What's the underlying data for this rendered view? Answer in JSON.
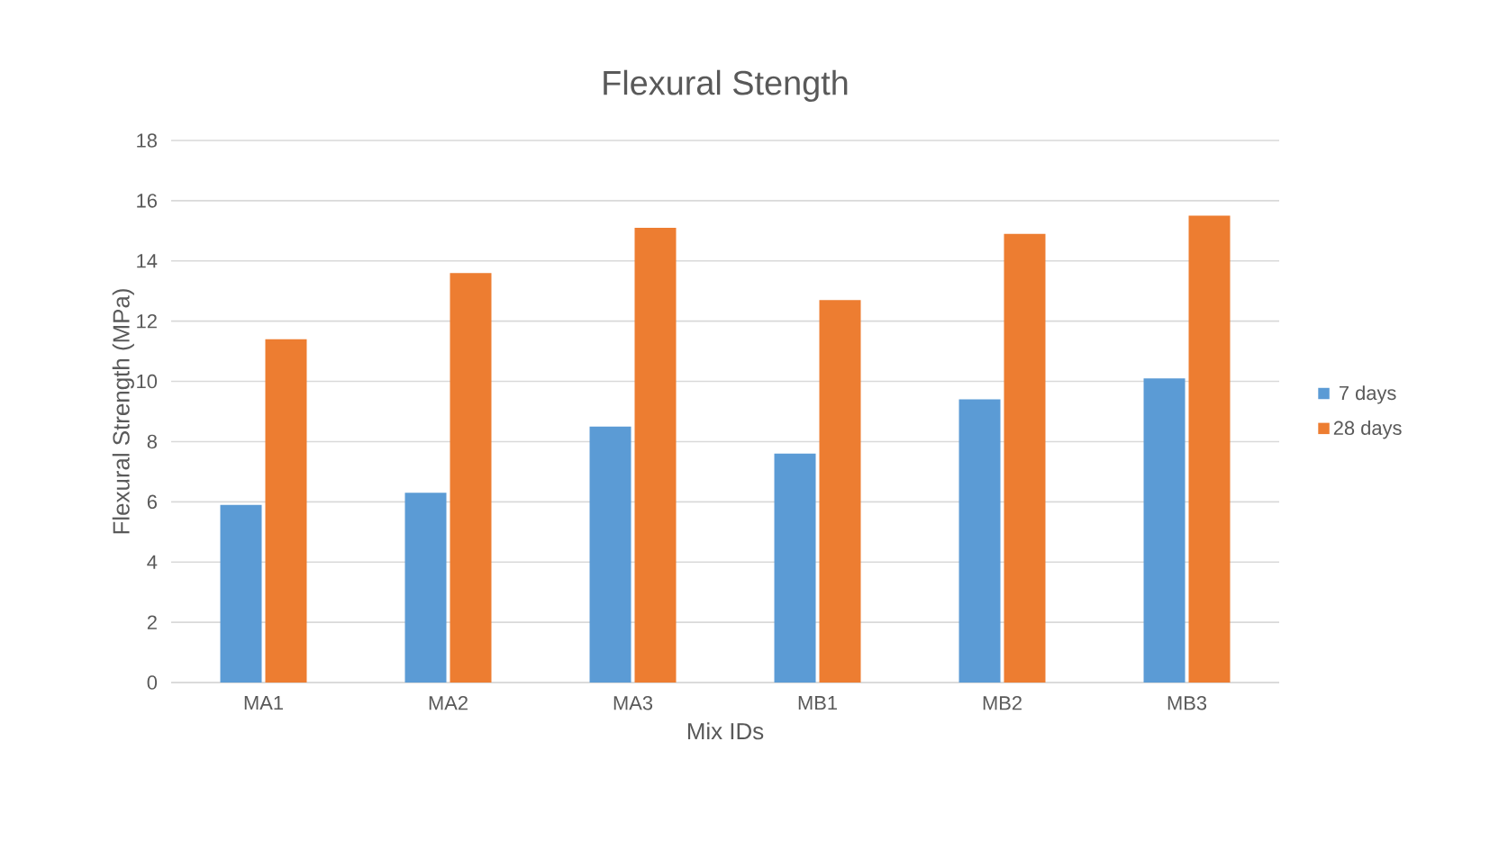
{
  "chart_data": {
    "type": "bar",
    "title": "Flexural Stength",
    "xlabel": "Mix IDs",
    "ylabel": "Flexural Strength (MPa)",
    "categories": [
      "MA1",
      "MA2",
      "MA3",
      "MB1",
      "MB2",
      "MB3"
    ],
    "series": [
      {
        "name": "7 days",
        "color": "#5b9bd5",
        "values": [
          5.9,
          6.3,
          8.5,
          7.6,
          9.4,
          10.1
        ]
      },
      {
        "name": "28 days",
        "color": "#ed7d31",
        "values": [
          11.4,
          13.6,
          15.1,
          12.7,
          14.9,
          15.5
        ]
      }
    ],
    "ylim": [
      0,
      18
    ],
    "yticks": [
      0,
      2,
      4,
      6,
      8,
      10,
      12,
      14,
      16,
      18
    ],
    "grid": "y",
    "legend": "right"
  }
}
